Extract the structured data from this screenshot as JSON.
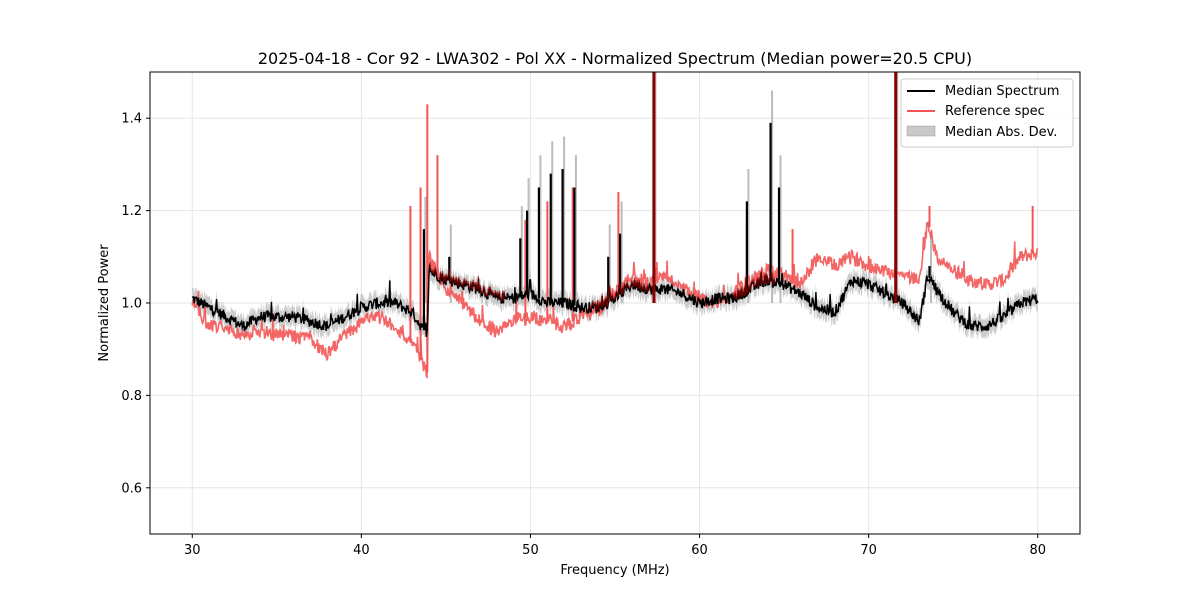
{
  "chart_data": {
    "type": "line",
    "title": "2025-04-18 - Cor 92 - LWA302 - Pol XX - Normalized Spectrum (Median power=20.5 CPU)",
    "xlabel": "Frequency (MHz)",
    "ylabel": "Normalized Power",
    "xlim": [
      27.5,
      82.5
    ],
    "ylim": [
      0.5,
      1.5
    ],
    "xticks": [
      30,
      40,
      50,
      60,
      70,
      80
    ],
    "yticks": [
      0.6,
      0.8,
      1.0,
      1.2,
      1.4
    ],
    "xtick_labels": [
      "30",
      "40",
      "50",
      "60",
      "70",
      "80"
    ],
    "ytick_labels": [
      "0.6",
      "0.8",
      "1.0",
      "1.2",
      "1.4"
    ],
    "grid": true,
    "legend_position": "top-right",
    "legend": {
      "median": "Median Spectrum",
      "reference": "Reference spec",
      "mad": "Median Abs. Dev."
    },
    "colors": {
      "median": "#000000",
      "reference": "#f25555",
      "mad": "#bbbbbb",
      "overlap": "#8b0000"
    },
    "series": [
      {
        "name": "Median Spectrum",
        "x": [
          30,
          31,
          32,
          33,
          34,
          35,
          36,
          37,
          38,
          39,
          40,
          41,
          42,
          43,
          43.9,
          44,
          45,
          46,
          47,
          48,
          49,
          50,
          51,
          52,
          53,
          54,
          55,
          56,
          57,
          58,
          59,
          60,
          61,
          62,
          63,
          64,
          65,
          66,
          67,
          68,
          69,
          70,
          71,
          72,
          73,
          73.5,
          74,
          75,
          76,
          77,
          78,
          79,
          80
        ],
        "values": [
          1.01,
          0.99,
          0.97,
          0.95,
          0.97,
          0.97,
          0.97,
          0.96,
          0.95,
          0.97,
          0.99,
          1.0,
          1.0,
          0.98,
          0.93,
          1.07,
          1.05,
          1.04,
          1.03,
          1.01,
          1.01,
          1.02,
          1.0,
          1.0,
          0.99,
          0.99,
          1.01,
          1.04,
          1.03,
          1.03,
          1.02,
          1.0,
          1.01,
          1.01,
          1.03,
          1.05,
          1.04,
          1.02,
          0.99,
          0.98,
          1.05,
          1.04,
          1.02,
          1.0,
          0.96,
          1.06,
          1.03,
          0.98,
          0.95,
          0.95,
          0.97,
          1.0,
          1.01
        ],
        "spikes": [
          [
            43.7,
            1.16
          ],
          [
            45.2,
            1.1
          ],
          [
            49.4,
            1.14
          ],
          [
            49.8,
            1.2
          ],
          [
            50.5,
            1.25
          ],
          [
            51.2,
            1.28
          ],
          [
            51.9,
            1.29
          ],
          [
            52.6,
            1.25
          ],
          [
            54.6,
            1.1
          ],
          [
            55.3,
            1.15
          ],
          [
            57.3,
            1.5
          ],
          [
            62.8,
            1.22
          ],
          [
            64.2,
            1.39
          ],
          [
            64.7,
            1.25
          ],
          [
            71.6,
            1.5
          ],
          [
            73.6,
            1.08
          ]
        ]
      },
      {
        "name": "Reference spec",
        "x": [
          30,
          31,
          32,
          33,
          34,
          35,
          36,
          37,
          38,
          39,
          40,
          41,
          42,
          43,
          43.9,
          44,
          45,
          46,
          47,
          48,
          49,
          50,
          51,
          52,
          53,
          54,
          55,
          56,
          57,
          58,
          59,
          60,
          61,
          62,
          63,
          64,
          65,
          66,
          67,
          68,
          69,
          70,
          71,
          72,
          73,
          73.5,
          74,
          75,
          76,
          77,
          78,
          79,
          80
        ],
        "values": [
          1.0,
          0.95,
          0.95,
          0.93,
          0.94,
          0.93,
          0.93,
          0.92,
          0.89,
          0.93,
          0.96,
          0.97,
          0.95,
          0.91,
          0.85,
          1.1,
          1.03,
          1.0,
          0.96,
          0.94,
          0.96,
          0.97,
          0.96,
          0.95,
          0.97,
          0.98,
          1.03,
          1.06,
          1.04,
          1.06,
          1.03,
          1.01,
          1.0,
          1.02,
          1.05,
          1.07,
          1.06,
          1.04,
          1.1,
          1.08,
          1.1,
          1.08,
          1.07,
          1.06,
          1.05,
          1.18,
          1.1,
          1.07,
          1.05,
          1.04,
          1.05,
          1.1,
          1.11
        ],
        "spikes": [
          [
            42.9,
            1.21
          ],
          [
            43.5,
            1.25
          ],
          [
            43.9,
            1.43
          ],
          [
            44.5,
            1.32
          ],
          [
            49.7,
            1.18
          ],
          [
            51.0,
            1.22
          ],
          [
            52.5,
            1.25
          ],
          [
            55.2,
            1.24
          ],
          [
            57.3,
            1.5
          ],
          [
            62.8,
            1.17
          ],
          [
            65.5,
            1.16
          ],
          [
            71.6,
            1.5
          ],
          [
            73.6,
            1.21
          ],
          [
            79.7,
            1.21
          ]
        ]
      }
    ],
    "mad_band_width": 0.02
  }
}
